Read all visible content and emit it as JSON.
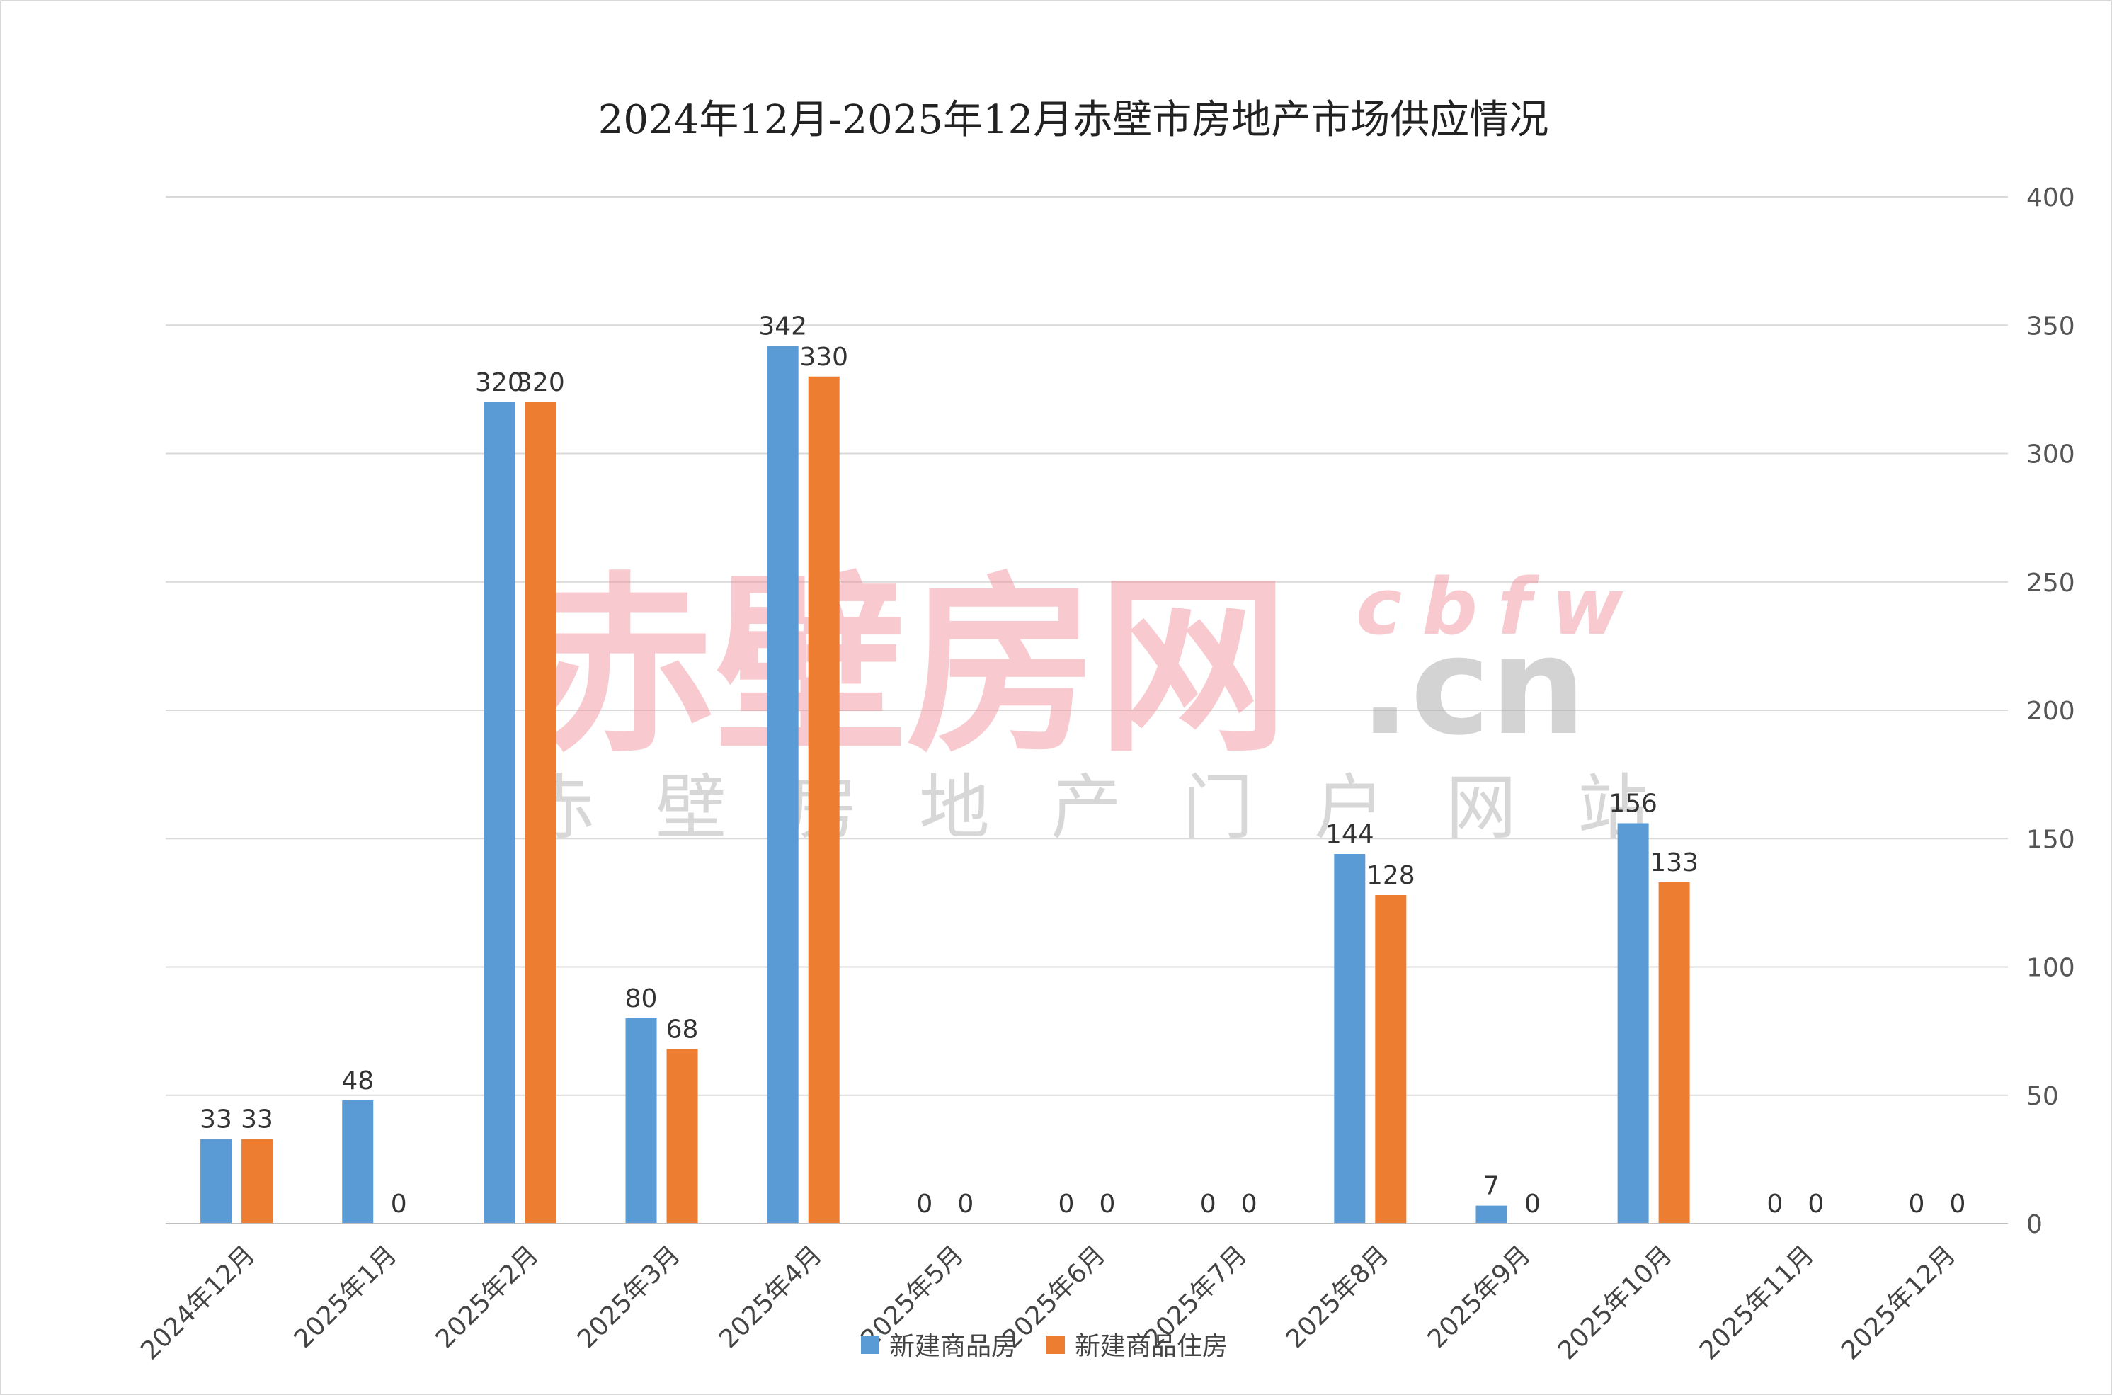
{
  "chart_data": {
    "type": "bar",
    "title": "2024年12月-2025年12月赤壁市房地产市场供应情况",
    "categories": [
      "2024年12月",
      "2025年1月",
      "2025年2月",
      "2025年3月",
      "2025年4月",
      "2025年5月",
      "2025年6月",
      "2025年7月",
      "2025年8月",
      "2025年9月",
      "2025年10月",
      "2025年11月",
      "2025年12月"
    ],
    "series": [
      {
        "name": "新建商品房",
        "color": "#5b9bd5",
        "values": [
          33,
          48,
          320,
          80,
          342,
          0,
          0,
          0,
          144,
          7,
          156,
          0,
          0
        ]
      },
      {
        "name": "新建商品住房",
        "color": "#ed7d31",
        "values": [
          33,
          0,
          320,
          68,
          330,
          0,
          0,
          0,
          128,
          0,
          133,
          0,
          0
        ]
      }
    ],
    "ylim": [
      0,
      400
    ],
    "yticks": [
      "0",
      "50",
      "100",
      "150",
      "200",
      "250",
      "300",
      "350",
      "400"
    ],
    "y_axis_side": "right",
    "grid": true,
    "legend": "bottom"
  },
  "watermark": {
    "main": "赤壁房网",
    "cbfw": "cbfw",
    "domain": ".cn",
    "sub": "赤壁房地产门户网站"
  }
}
